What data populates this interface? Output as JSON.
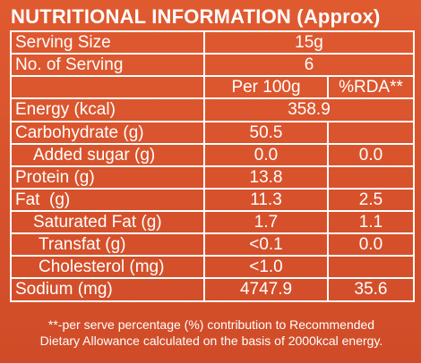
{
  "title": "NUTRITIONAL INFORMATION (Approx)",
  "serving_size": {
    "label": "Serving Size",
    "value": "15g"
  },
  "servings": {
    "label": "No. of Serving",
    "value": "6"
  },
  "headers": {
    "per100": "Per 100g",
    "rda": "%RDA**"
  },
  "energy": {
    "label": "Energy (kcal)",
    "value": "358.9"
  },
  "rows": [
    {
      "label": "Carbohydrate (g)",
      "per100": "50.5",
      "rda": ""
    },
    {
      "label": "Added sugar (g)",
      "per100": "0.0",
      "rda": "0.0"
    },
    {
      "label": "Protein (g)",
      "per100": "13.8",
      "rda": ""
    },
    {
      "label": "Fat  (g)",
      "per100": "11.3",
      "rda": "2.5"
    },
    {
      "label": "Saturated Fat (g)",
      "per100": "1.7",
      "rda": "1.1"
    },
    {
      "label": "Transfat (g)",
      "per100": "<0.1",
      "rda": "0.0"
    },
    {
      "label": "Cholesterol (mg)",
      "per100": "<1.0",
      "rda": ""
    },
    {
      "label": "Sodium (mg)",
      "per100": "4747.9",
      "rda": "35.6"
    }
  ],
  "footer": {
    "line1": "**-per serve percentage (%) contribution to Recommended",
    "line2": "Dietary Allowance calculated on the basis of 2000kcal energy."
  }
}
